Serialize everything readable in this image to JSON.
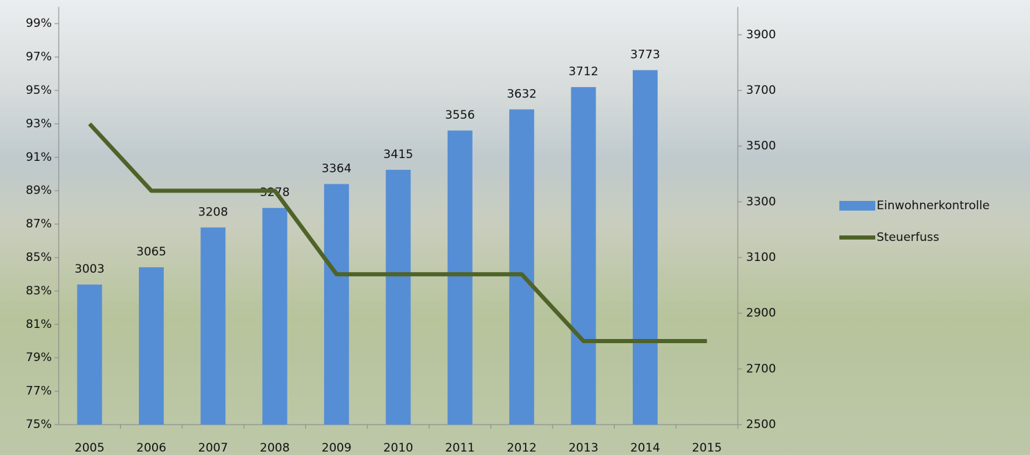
{
  "chart_data": {
    "type": "bar-line",
    "categories": [
      "2005",
      "2006",
      "2007",
      "2008",
      "2009",
      "2010",
      "2011",
      "2012",
      "2013",
      "2014",
      "2015"
    ],
    "series": [
      {
        "name": "Einwohnerkontrolle",
        "type": "bar",
        "color": "#558ed5",
        "axis": "y2",
        "values": [
          3003,
          3065,
          3208,
          3278,
          3364,
          3415,
          3556,
          3632,
          3712,
          3773,
          null
        ]
      },
      {
        "name": "Steuerfuss",
        "type": "line",
        "color": "#4f6228",
        "axis": "y",
        "values": [
          93,
          89,
          89,
          89,
          84,
          84,
          84,
          84,
          80,
          80,
          80
        ]
      }
    ],
    "ylim": [
      75,
      100
    ],
    "yticks": [
      {
        "value": 75,
        "label": "75%"
      },
      {
        "value": 77,
        "label": "77%"
      },
      {
        "value": 79,
        "label": "79%"
      },
      {
        "value": 81,
        "label": "81%"
      },
      {
        "value": 83,
        "label": "83%"
      },
      {
        "value": 85,
        "label": "85%"
      },
      {
        "value": 87,
        "label": "87%"
      },
      {
        "value": 89,
        "label": "89%"
      },
      {
        "value": 91,
        "label": "91%"
      },
      {
        "value": 93,
        "label": "93%"
      },
      {
        "value": 95,
        "label": "95%"
      },
      {
        "value": 97,
        "label": "97%"
      },
      {
        "value": 99,
        "label": "99%"
      }
    ],
    "y2lim": [
      2500,
      4000
    ],
    "y2ticks": [
      2500,
      2700,
      2900,
      3100,
      3300,
      3500,
      3700,
      3900
    ],
    "legend": "right"
  }
}
